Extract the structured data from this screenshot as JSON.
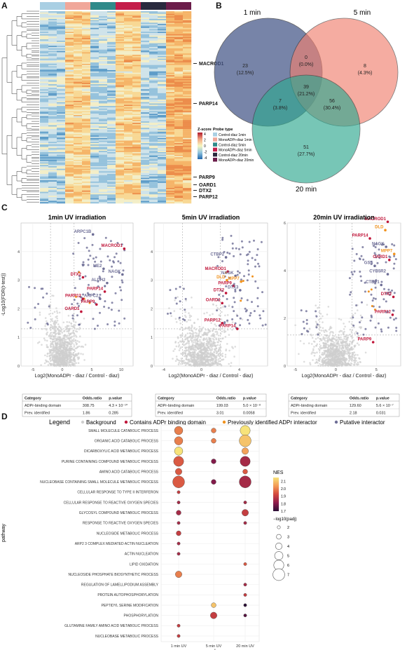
{
  "panels": {
    "a": "A",
    "b": "B",
    "c": "C",
    "d": "D"
  },
  "heatmap": {
    "genes": [
      "MACROD1",
      "PARP14",
      "PARP9",
      "OARD1",
      "DTX2",
      "PARP12"
    ],
    "zscore_title": "Z-score",
    "zscore_ticks": [
      "4",
      "2",
      "0",
      "-2",
      "-4"
    ],
    "probe_title": "Probe type",
    "probe_types": [
      {
        "label": "Control-diaz 1min",
        "color": "#a9cfe3"
      },
      {
        "label": "MonoADPr-diaz 1min",
        "color": "#f0a79a"
      },
      {
        "label": "Control-diaz 5min",
        "color": "#2f8a8a"
      },
      {
        "label": "MonoADPr-diaz 5min",
        "color": "#c41e4a"
      },
      {
        "label": "Control-diaz 20min",
        "color": "#2a2a3e"
      },
      {
        "label": "MonoADPr-diaz 20min",
        "color": "#6b1d4a"
      }
    ],
    "column_colors": [
      "#a9cfe3",
      "#f0a79a",
      "#2f8a8a",
      "#c41e4a",
      "#2a2a3e",
      "#6b1d4a"
    ]
  },
  "venn": {
    "sets": [
      {
        "label": "1 min",
        "color": "#4a5b8c"
      },
      {
        "label": "5 min",
        "color": "#f08070"
      },
      {
        "label": "20 min",
        "color": "#2fa890"
      }
    ],
    "regions": [
      {
        "count": "23",
        "pct": "(12.5%)"
      },
      {
        "count": "0",
        "pct": "(0.0%)"
      },
      {
        "count": "8",
        "pct": "(4.3%)"
      },
      {
        "count": "39",
        "pct": "(21.2%)"
      },
      {
        "count": "7",
        "pct": "(3.8%)"
      },
      {
        "count": "56",
        "pct": "(30.4%)"
      },
      {
        "count": "51",
        "pct": "(27.7%)"
      }
    ]
  },
  "volcano": {
    "ylabel": "-Log10(FDR(t-test))",
    "xlabel": "Log2(MonoADPr - diaz / Control - diaz)",
    "colors": {
      "binding": "#c0163a",
      "previous": "#f0921e",
      "putative": "#6e6e96",
      "background": "#cfcfcf"
    },
    "table_headers": [
      "Category",
      "Odds.ratio",
      "p.value"
    ],
    "plots": [
      {
        "title": "1min UV irradiation",
        "xlim": [
          -7,
          12
        ],
        "ylim": [
          0,
          5
        ],
        "xticks": [
          -5,
          0,
          5,
          10
        ],
        "yticks": [
          0,
          1,
          2,
          3,
          4
        ],
        "labels": [
          {
            "text": "ARPC1B",
            "x": 5.2,
            "y": 4.6,
            "type": "putative"
          },
          {
            "text": "MACROD1",
            "x": 10.5,
            "y": 4.1,
            "type": "binding"
          },
          {
            "text": "ME2",
            "x": 7.0,
            "y": 3.4,
            "type": "putative"
          },
          {
            "text": "NAGK",
            "x": 10.2,
            "y": 3.2,
            "type": "putative"
          },
          {
            "text": "DTX2",
            "x": 3.5,
            "y": 3.1,
            "type": "binding"
          },
          {
            "text": "ALDH2",
            "x": 7.6,
            "y": 2.9,
            "type": "putative"
          },
          {
            "text": "PARP14",
            "x": 7.2,
            "y": 2.6,
            "type": "binding"
          },
          {
            "text": "PARP12",
            "x": 3.5,
            "y": 2.35,
            "type": "binding"
          },
          {
            "text": "ARPC2",
            "x": 6.4,
            "y": 2.35,
            "type": "putative"
          },
          {
            "text": "PARP9",
            "x": 5.8,
            "y": 2.15,
            "type": "binding"
          },
          {
            "text": "OARD1",
            "x": 3.2,
            "y": 1.9,
            "type": "binding"
          }
        ],
        "table": [
          {
            "category": "ADPr-binding domain",
            "odds": "308.75",
            "p": "4.3 × 10⁻¹⁰"
          },
          {
            "category": "Prev. identified",
            "odds": "1.86",
            "p": "0.285"
          }
        ]
      },
      {
        "title": "5min UV irradiation",
        "xlim": [
          -5,
          7
        ],
        "ylim": [
          0,
          5
        ],
        "xticks": [
          -4,
          0,
          4
        ],
        "yticks": [
          0,
          1,
          2,
          3,
          4
        ],
        "labels": [
          {
            "text": "CTBP2",
            "x": 2.6,
            "y": 3.8,
            "type": "putative"
          },
          {
            "text": "MACROD1",
            "x": 2.8,
            "y": 3.3,
            "type": "binding"
          },
          {
            "text": "NAGK",
            "x": 3.6,
            "y": 3.15,
            "type": "putative"
          },
          {
            "text": "DLD",
            "x": 2.7,
            "y": 3.0,
            "type": "previous"
          },
          {
            "text": "MPP7",
            "x": 4.2,
            "y": 2.95,
            "type": "previous"
          },
          {
            "text": "PARP9",
            "x": 3.4,
            "y": 2.8,
            "type": "binding"
          },
          {
            "text": "DTX3",
            "x": 4.1,
            "y": 2.65,
            "type": "putative"
          },
          {
            "text": "DTX2",
            "x": 2.6,
            "y": 2.55,
            "type": "binding"
          },
          {
            "text": "OARD1",
            "x": 2.2,
            "y": 2.2,
            "type": "binding"
          },
          {
            "text": "PARP12",
            "x": 2.2,
            "y": 1.5,
            "type": "binding"
          },
          {
            "text": "PARP14",
            "x": 3.8,
            "y": 1.3,
            "type": "binding"
          }
        ],
        "table": [
          {
            "category": "ADPr-binding domain",
            "odds": "199.03",
            "p": "5.0 × 10⁻⁸"
          },
          {
            "category": "Prev. identified",
            "odds": "3.01",
            "p": "0.0058"
          }
        ]
      },
      {
        "title": "20min UV irradiation",
        "xlim": [
          -6,
          8
        ],
        "ylim": [
          0,
          6
        ],
        "xticks": [
          -5,
          0,
          5
        ],
        "yticks": [
          0,
          2,
          4,
          6
        ],
        "labels": [
          {
            "text": "MACROD1",
            "x": 6.4,
            "y": 6.05,
            "type": "binding"
          },
          {
            "text": "DLD",
            "x": 6.1,
            "y": 5.7,
            "type": "previous"
          },
          {
            "text": "PARP14",
            "x": 4.2,
            "y": 5.35,
            "type": "binding"
          },
          {
            "text": "NAGK",
            "x": 6.2,
            "y": 5.0,
            "type": "putative"
          },
          {
            "text": "MPP7",
            "x": 7.2,
            "y": 4.7,
            "type": "previous"
          },
          {
            "text": "OARD1",
            "x": 6.6,
            "y": 4.45,
            "type": "binding"
          },
          {
            "text": "GSS",
            "x": 4.8,
            "y": 4.2,
            "type": "putative"
          },
          {
            "text": "CYB5R2",
            "x": 6.4,
            "y": 3.85,
            "type": "putative"
          },
          {
            "text": "CTBP1",
            "x": 5.6,
            "y": 3.4,
            "type": "putative"
          },
          {
            "text": "DTX2",
            "x": 7.1,
            "y": 2.9,
            "type": "binding"
          },
          {
            "text": "PARP12",
            "x": 7.0,
            "y": 2.15,
            "type": "binding"
          },
          {
            "text": "PARP9",
            "x": 4.6,
            "y": 1.0,
            "type": "binding"
          }
        ],
        "table": [
          {
            "category": "ADPr-binding domain",
            "odds": "129.60",
            "p": "5.6 × 10⁻⁷"
          },
          {
            "category": "Prev. identified",
            "odds": "2.18",
            "p": "0.031"
          }
        ]
      }
    ]
  },
  "legend": {
    "title": "Legend",
    "items": [
      {
        "label": "Background",
        "color": "#cfcfcf"
      },
      {
        "label": "Contains ADPr binding domain",
        "color": "#c0163a"
      },
      {
        "label": "Previously identified ADPr interactor",
        "color": "#f0921e"
      },
      {
        "label": "Putative interactor",
        "color": "#6e6e96"
      }
    ]
  },
  "chart_data": {
    "type": "scatter",
    "ylabel": "pathway",
    "xlabel": "probe",
    "probes": [
      "1 min UV",
      "5 min UV",
      "20 min UV"
    ],
    "pathways": [
      "SMALL MOLECULE CATABOLIC PROCESS",
      "ORGANIC ACID CATABOLIC PROCESS",
      "DICARBOXYLIC ACID METABOLIC PROCESS",
      "PURINE CONTAINING COMPOUND METABOLIC PROCESS",
      "AMINO ACID CATABOLIC PROCESS",
      "NUCLEOBASE CONTAINING SMALL MOLECULE METABOLIC PROCESS",
      "CELLULAR RESPONSE TO TYPE II INTERFERON",
      "CELLULAR RESPONSE TO REACTIVE OXYGEN SPECIES",
      "GLYCOSYL COMPOUND METABOLIC PROCESS",
      "RESPONSE TO REACTIVE OXYGEN SPECIES",
      "NUCLEOSIDE METABOLIC PROCESS",
      "ARP2 3 COMPLEX MEDIATED ACTIN NUCLEATION",
      "ACTIN NUCLEATION",
      "LIPID OXIDATION",
      "NUCLEOSIDE PHOSPHATE BIOSYNTHETIC PROCESS",
      "REGULATION OF LAMELLIPODIUM ASSEMBLY",
      "PROTEIN AUTOPHOSPHORYLATION",
      "PEPTIDYL SERINE MODIFICATION",
      "PHOSPHORYLATION",
      "GLUTAMINE FAMILY AMINO ACID METABOLIC PROCESS",
      "NUCLEOBASE METABOLIC PROCESS"
    ],
    "points": [
      {
        "pathway": 0,
        "probe": 0,
        "nes": 2.0,
        "padj": 5
      },
      {
        "pathway": 0,
        "probe": 1,
        "nes": 2.0,
        "padj": 3
      },
      {
        "pathway": 0,
        "probe": 2,
        "nes": 2.15,
        "padj": 6
      },
      {
        "pathway": 1,
        "probe": 0,
        "nes": 2.0,
        "padj": 5
      },
      {
        "pathway": 1,
        "probe": 1,
        "nes": 2.0,
        "padj": 3
      },
      {
        "pathway": 1,
        "probe": 2,
        "nes": 2.1,
        "padj": 7
      },
      {
        "pathway": 2,
        "probe": 0,
        "nes": 2.15,
        "padj": 5
      },
      {
        "pathway": 2,
        "probe": 2,
        "nes": 2.05,
        "padj": 4
      },
      {
        "pathway": 3,
        "probe": 0,
        "nes": 1.95,
        "padj": 6
      },
      {
        "pathway": 3,
        "probe": 1,
        "nes": 1.8,
        "padj": 3
      },
      {
        "pathway": 3,
        "probe": 2,
        "nes": 1.85,
        "padj": 6
      },
      {
        "pathway": 4,
        "probe": 0,
        "nes": 1.95,
        "padj": 4
      },
      {
        "pathway": 4,
        "probe": 2,
        "nes": 1.95,
        "padj": 3
      },
      {
        "pathway": 5,
        "probe": 0,
        "nes": 1.95,
        "padj": 7
      },
      {
        "pathway": 5,
        "probe": 1,
        "nes": 1.8,
        "padj": 3
      },
      {
        "pathway": 5,
        "probe": 2,
        "nes": 1.85,
        "padj": 7
      },
      {
        "pathway": 6,
        "probe": 0,
        "nes": 1.9,
        "padj": 2
      },
      {
        "pathway": 7,
        "probe": 0,
        "nes": 1.85,
        "padj": 2
      },
      {
        "pathway": 7,
        "probe": 2,
        "nes": 1.85,
        "padj": 2
      },
      {
        "pathway": 8,
        "probe": 0,
        "nes": 1.85,
        "padj": 3
      },
      {
        "pathway": 8,
        "probe": 2,
        "nes": 1.9,
        "padj": 4
      },
      {
        "pathway": 9,
        "probe": 0,
        "nes": 1.85,
        "padj": 2
      },
      {
        "pathway": 9,
        "probe": 2,
        "nes": 1.85,
        "padj": 2
      },
      {
        "pathway": 10,
        "probe": 0,
        "nes": 1.9,
        "padj": 3
      },
      {
        "pathway": 11,
        "probe": 0,
        "nes": 1.85,
        "padj": 2
      },
      {
        "pathway": 12,
        "probe": 0,
        "nes": 1.85,
        "padj": 2
      },
      {
        "pathway": 13,
        "probe": 2,
        "nes": 1.95,
        "padj": 2
      },
      {
        "pathway": 14,
        "probe": 0,
        "nes": 2.0,
        "padj": 4
      },
      {
        "pathway": 15,
        "probe": 2,
        "nes": 1.85,
        "padj": 2
      },
      {
        "pathway": 16,
        "probe": 2,
        "nes": 1.9,
        "padj": 2
      },
      {
        "pathway": 17,
        "probe": 1,
        "nes": 2.1,
        "padj": 3
      },
      {
        "pathway": 17,
        "probe": 2,
        "nes": 1.7,
        "padj": 2
      },
      {
        "pathway": 18,
        "probe": 1,
        "nes": 1.9,
        "padj": 4
      },
      {
        "pathway": 18,
        "probe": 2,
        "nes": 1.75,
        "padj": 2
      },
      {
        "pathway": 19,
        "probe": 0,
        "nes": 1.9,
        "padj": 2
      },
      {
        "pathway": 20,
        "probe": 0,
        "nes": 1.9,
        "padj": 2
      }
    ],
    "nes_title": "NES",
    "nes_ticks": [
      2.1,
      2.0,
      1.9,
      1.8,
      1.7
    ],
    "nes_range": [
      1.7,
      2.15
    ],
    "size_title": "−log10(padj)",
    "size_ticks": [
      2,
      3,
      4,
      5,
      6,
      7
    ]
  }
}
